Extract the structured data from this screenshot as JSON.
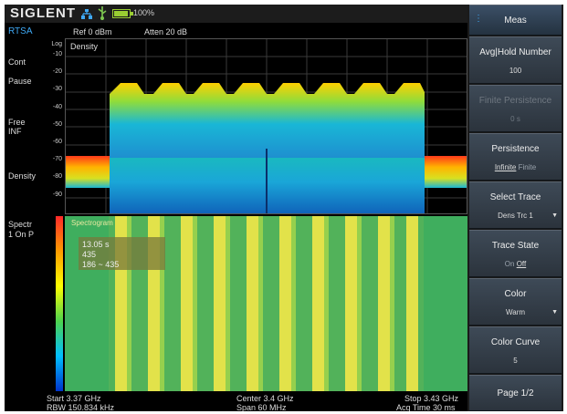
{
  "status": {
    "brand": "SIGLENT",
    "battery": "100%",
    "icons": {
      "network": "network-icon",
      "usb": "usb-icon",
      "battery": "battery-icon"
    }
  },
  "left_panel": {
    "mode": "RTSA",
    "cont": "Cont",
    "pause": "Pause",
    "free": "Free",
    "inf": "INF",
    "density": "Density",
    "spectr": "Spectr",
    "spectr_state": "1 On P"
  },
  "header": {
    "ref": "Ref  0 dBm",
    "atten": "Atten  20 dB"
  },
  "density": {
    "title": "Density",
    "log_label": "Log",
    "y_ticks": [
      "-10",
      "-20",
      "-30",
      "-40",
      "-50",
      "-60",
      "-70",
      "-80",
      "-90"
    ]
  },
  "spectrogram": {
    "label": "Spectrogram",
    "marker": {
      "time": "13.05 s",
      "value": "435",
      "range": "186 ~ 435"
    }
  },
  "footer": {
    "start": "Start  3.37 GHz",
    "rbw": "RBW  150.834 kHz",
    "center": "Center  3.4 GHz",
    "span": "Span  60 MHz",
    "stop": "Stop  3.43 GHz",
    "acq": "Acq Time  30 ms"
  },
  "menu": {
    "title": "Meas",
    "avg_hold": {
      "label": "Avg|Hold Number",
      "value": "100"
    },
    "finite_persistence": {
      "label": "Finite Persistence",
      "value": "0 s"
    },
    "persistence": {
      "label": "Persistence",
      "opt1": "Infinite",
      "opt2": "Finite"
    },
    "select_trace": {
      "label": "Select Trace",
      "value": "Dens Trc 1"
    },
    "trace_state": {
      "label": "Trace State",
      "opt1": "On",
      "opt2": "Off"
    },
    "color": {
      "label": "Color",
      "value": "Warm"
    },
    "color_curve": {
      "label": "Color Curve",
      "value": "5"
    },
    "page": "Page 1/2"
  },
  "colors": {
    "accent_blue": "#3fa9f5",
    "menu_bg": "#2b333c",
    "spectro_green": "#52b25a",
    "spectro_yellow": "#e2e24a"
  }
}
